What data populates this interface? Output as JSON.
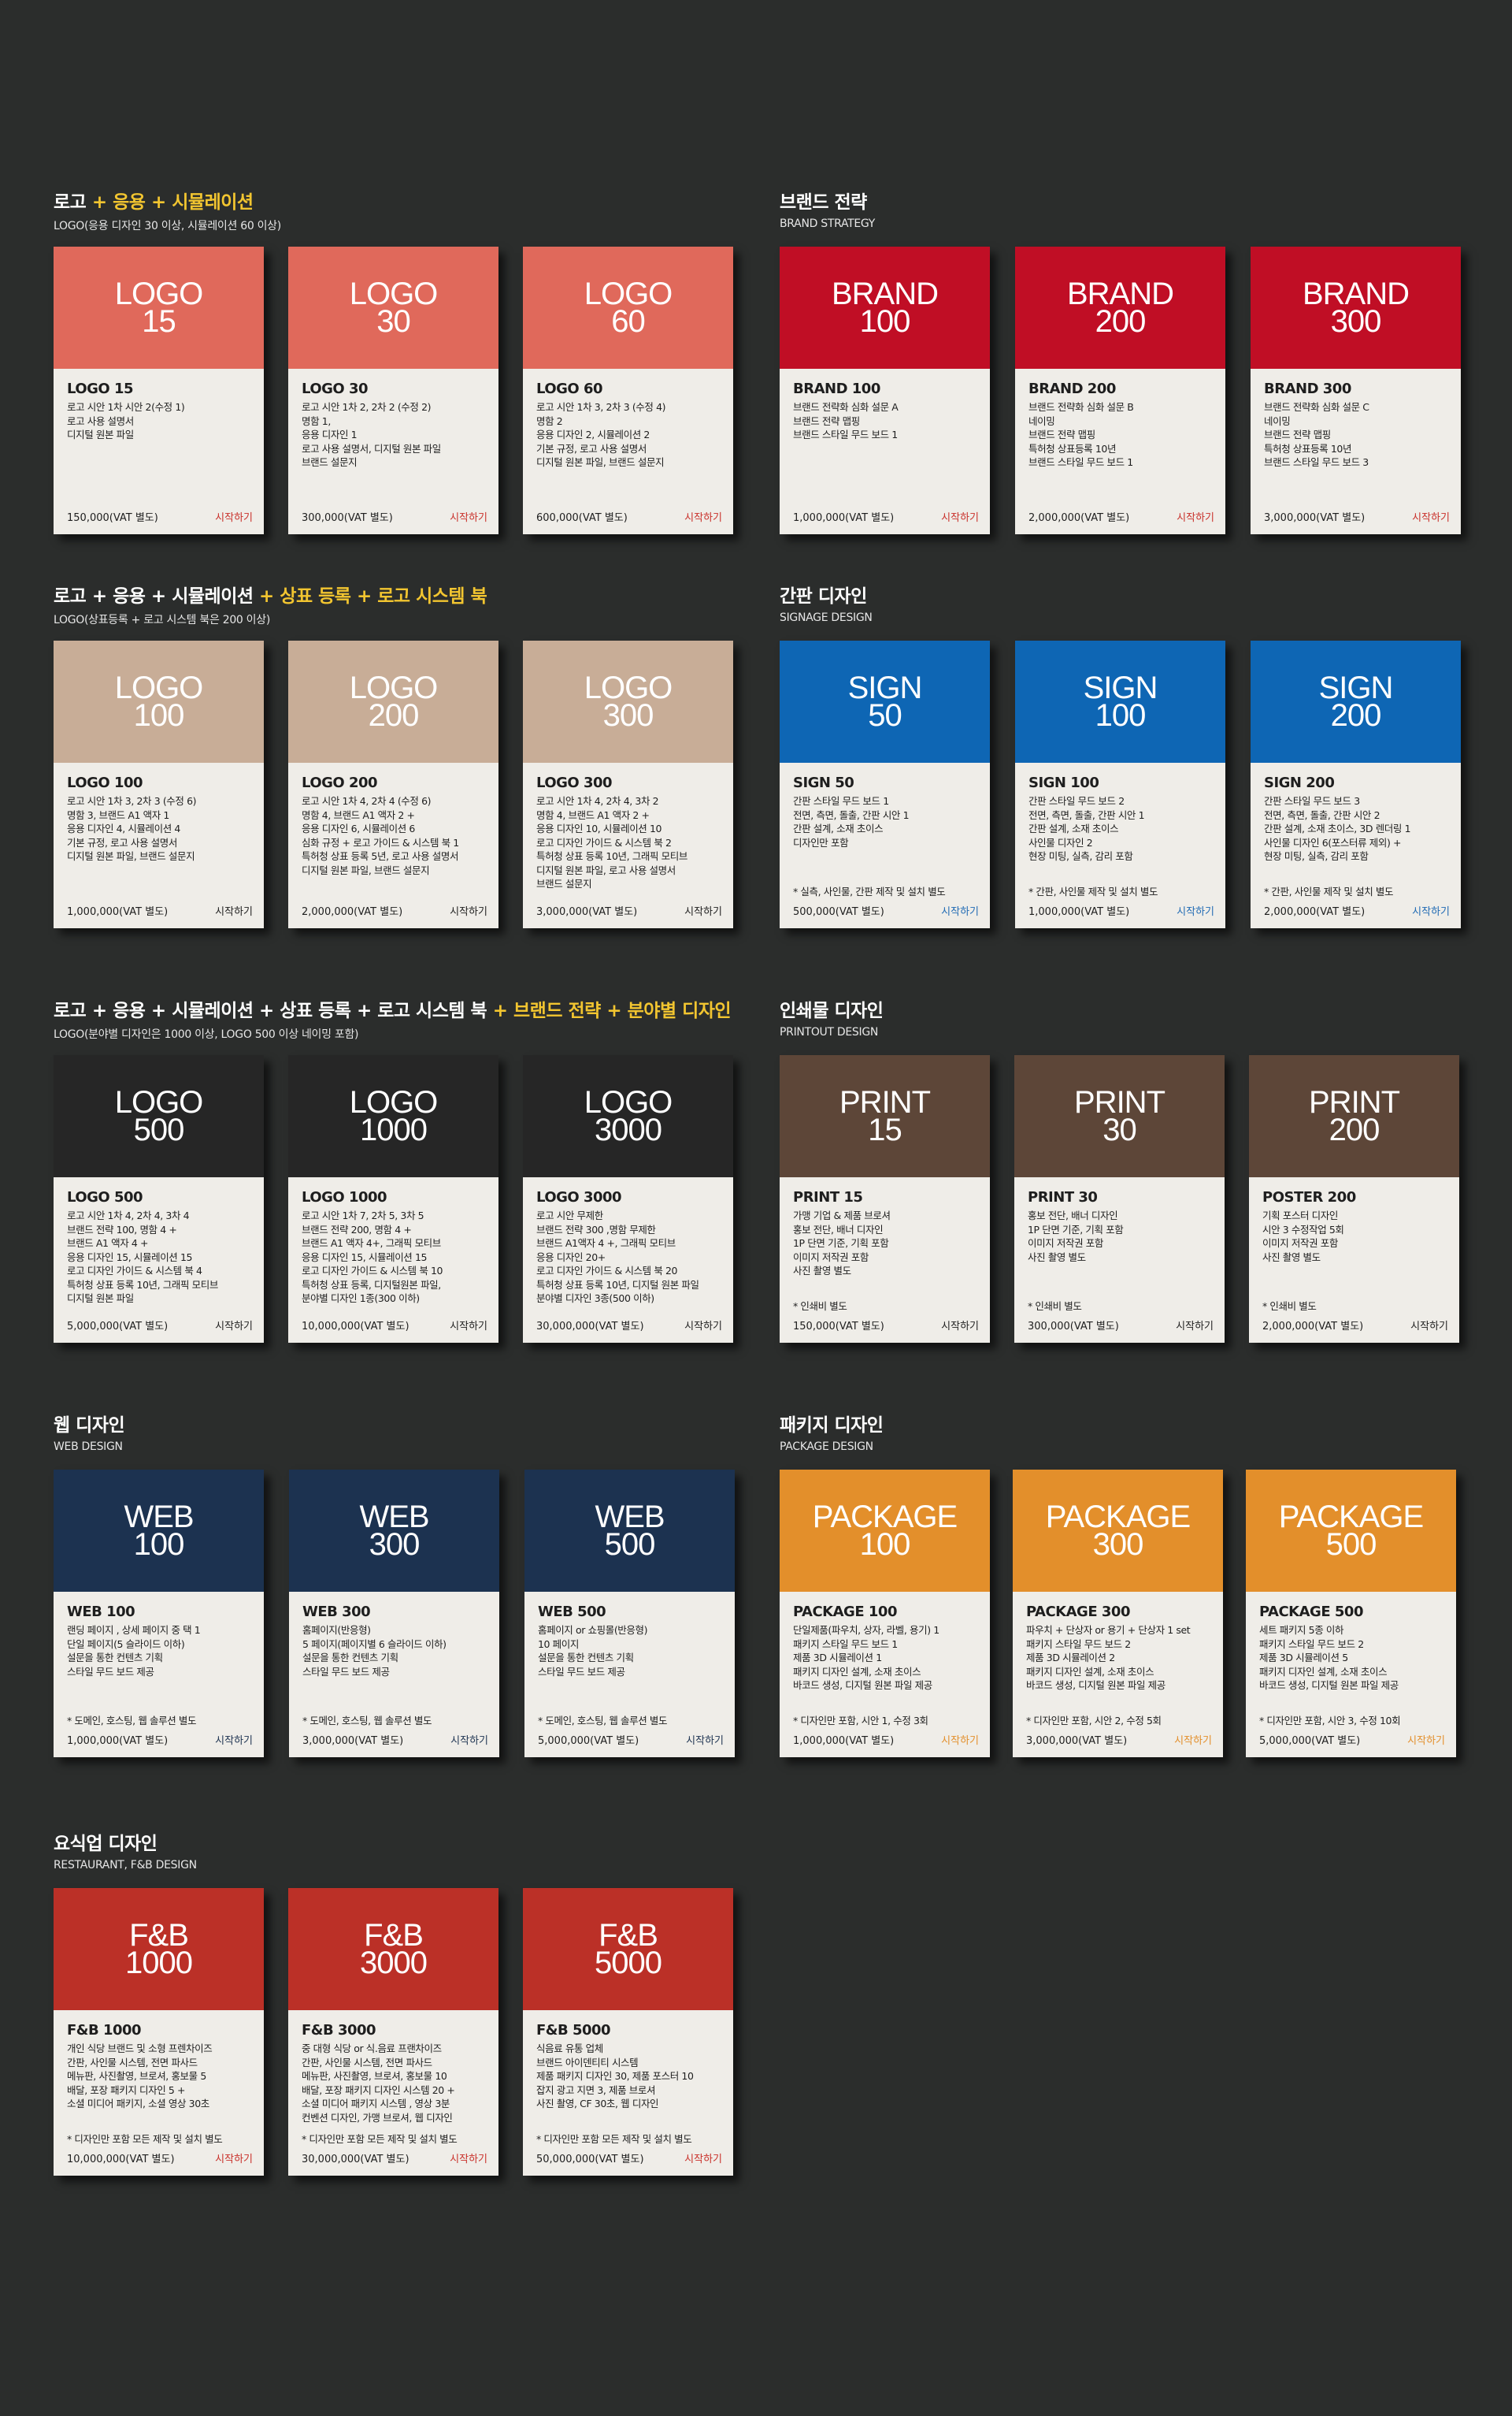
{
  "colors": {
    "logo_red": "#e0695b",
    "logo_tan": "#c8ad97",
    "logo_dark": "#262626",
    "brand_red": "#c00e25",
    "sign_blue": "#0e66b4",
    "print_brown": "#5d4638",
    "web_navy": "#1c3250",
    "package_orange": "#e38f2b",
    "fnb_red": "#bb3027",
    "start_red": "#c9302a",
    "start_blue": "#1f6ab4",
    "start_navy": "#1c3250",
    "start_orange": "#e38f2b",
    "start_dark": "#1e1e1e",
    "highlight_yellow": "#f2c530"
  },
  "sections": {
    "logo_basic": {
      "title_parts": [
        "로고",
        " + ",
        "응용",
        " + ",
        "시뮬레이션"
      ],
      "subtitle": "LOGO(응용 디자인 30 이상, 시뮬레이션 60 이상)",
      "cards": [
        {
          "head": [
            "LOGO",
            "15"
          ],
          "name": "LOGO 15",
          "lines": [
            "로고 시안 1차 시안 2(수정 1)",
            "로고 사용 설명서",
            "디지털 원본 파일"
          ],
          "note": "",
          "price": "150,000(VAT 별도)",
          "start": "시작하기"
        },
        {
          "head": [
            "LOGO",
            "30"
          ],
          "name": "LOGO 30",
          "lines": [
            "로고 시안 1차 2, 2차 2 (수정 2)",
            "명함 1,",
            "응용 디자인 1",
            "로고 사용 설명서, 디지털 원본 파일",
            "브랜드 설문지"
          ],
          "note": "",
          "price": "300,000(VAT 별도)",
          "start": "시작하기"
        },
        {
          "head": [
            "LOGO",
            "60"
          ],
          "name": "LOGO 60",
          "lines": [
            "로고 시안 1차 3, 2차 3 (수정 4)",
            "명함 2",
            "응용 디자인 2, 시뮬레이션 2",
            "기본 규정, 로고 사용 설명서",
            "디지털 원본 파일, 브랜드 설문지"
          ],
          "note": "",
          "price": "600,000(VAT 별도)",
          "start": "시작하기"
        }
      ]
    },
    "brand": {
      "title": "브랜드 전략",
      "subtitle": "BRAND STRATEGY",
      "cards": [
        {
          "head": [
            "BRAND",
            "100"
          ],
          "name": "BRAND 100",
          "lines": [
            "브랜드 전략화 심화 설문 A",
            "브랜드 전략 맵핑",
            "브랜드 스타일 무드 보드 1"
          ],
          "note": "",
          "price": "1,000,000(VAT 별도)",
          "start": "시작하기"
        },
        {
          "head": [
            "BRAND",
            "200"
          ],
          "name": "BRAND 200",
          "lines": [
            "브랜드 전략화 심화 설문 B",
            "네이밍",
            "브랜드 전략 맵핑",
            "특허청 상표등록 10년",
            "브랜드 스타일 무드 보드 1"
          ],
          "note": "",
          "price": "2,000,000(VAT 별도)",
          "start": "시작하기"
        },
        {
          "head": [
            "BRAND",
            "300"
          ],
          "name": "BRAND 300",
          "lines": [
            "브랜드 전략화 심화 설문 C",
            "네이밍",
            "브랜드 전략 맵핑",
            "특허청 상표등록 10년",
            "브랜드 스타일 무드 보드 3"
          ],
          "note": "",
          "price": "3,000,000(VAT 별도)",
          "start": "시작하기"
        }
      ]
    },
    "logo_trademark": {
      "title_parts": [
        "로고 + 응용 + 시뮬레이션",
        " + ",
        "상표 등록",
        " + ",
        "로고 시스템 북"
      ],
      "subtitle": "LOGO(상표등록 + 로고 시스템 북은 200 이상)",
      "cards": [
        {
          "head": [
            "LOGO",
            "100"
          ],
          "name": "LOGO 100",
          "lines": [
            "로고 시안 1차 3, 2차 3 (수정 6)",
            "명함 3, 브랜드 A1 액자 1",
            "응용 디자인 4, 시뮬레이션 4",
            "기본 규정, 로고 사용 설명서",
            "디지털 원본 파일, 브랜드 설문지"
          ],
          "note": "",
          "price": "1,000,000(VAT 별도)",
          "start": "시작하기"
        },
        {
          "head": [
            "LOGO",
            "200"
          ],
          "name": "LOGO 200",
          "lines": [
            "로고 시안 1차 4, 2차 4 (수정 6)",
            "명함 4, 브랜드 A1 액자 2 +",
            "응용 디자인 6, 시뮬레이션 6",
            "심화 규정 + 로고 가이드 & 시스템 북 1",
            "특허청 상표 등록 5년, 로고 사용 설명서",
            "디지털 원본 파일, 브랜드 설문지"
          ],
          "note": "",
          "price": "2,000,000(VAT 별도)",
          "start": "시작하기"
        },
        {
          "head": [
            "LOGO",
            "300"
          ],
          "name": "LOGO 300",
          "lines": [
            "로고 시안 1차 4, 2차 4, 3차 2",
            "명함 4, 브랜드 A1 액자 2 +",
            "응용 디자인 10, 시뮬레이션 10",
            "로고 디자인 가이드 & 시스템 북 2",
            "특허청 상표 등록 10년, 그래픽 모티브",
            "디지털 원본 파일, 로고 사용 설명서",
            "브랜드 설문지"
          ],
          "note": "",
          "price": "3,000,000(VAT 별도)",
          "start": "시작하기"
        }
      ]
    },
    "sign": {
      "title": "간판 디자인",
      "subtitle": "SIGNAGE DESIGN",
      "cards": [
        {
          "head": [
            "SIGN",
            "50"
          ],
          "name": "SIGN 50",
          "lines": [
            "간판 스타일 무드 보드 1",
            "전면, 측면, 돌출, 간판 시안 1",
            "간판 설계, 소재 초이스",
            "디자인만 포함"
          ],
          "note": "* 실측, 사인물, 간판 제작 및 설치 별도",
          "price": "500,000(VAT 별도)",
          "start": "시작하기"
        },
        {
          "head": [
            "SIGN",
            "100"
          ],
          "name": "SIGN 100",
          "lines": [
            "간판 스타일 무드 보드 2",
            "전면, 측면, 돌출, 간판 시안 1",
            "간판 설계, 소재 초이스",
            "사인물 디자인 2",
            "현장 미팅, 실측, 감리 포함"
          ],
          "note": "* 간판, 사인물 제작 및 설치 별도",
          "price": "1,000,000(VAT 별도)",
          "start": "시작하기"
        },
        {
          "head": [
            "SIGN",
            "200"
          ],
          "name": "SIGN 200",
          "lines": [
            "간판 스타일 무드 보드 3",
            "전면, 측면, 돌출, 간판 시안 2",
            "간판 설계, 소재 초이스, 3D 렌더링 1",
            "사인물 디자인 6(포스터류 제외) +",
            "현장 미팅, 실측, 감리 포함"
          ],
          "note": "* 간판, 사인물 제작 및 설치 별도",
          "price": "2,000,000(VAT 별도)",
          "start": "시작하기"
        }
      ]
    },
    "logo_full": {
      "title_parts": [
        "로고 + 응용 + 시뮬레이션 + 상표 등록 + 로고 시스템 북",
        " + ",
        "브랜드 전략",
        " + ",
        "분야별 디자인"
      ],
      "subtitle": "LOGO(분야별 디자인은 1000 이상, LOGO 500 이상 네이밍 포함)",
      "cards": [
        {
          "head": [
            "LOGO",
            "500"
          ],
          "name": "LOGO 500",
          "lines": [
            "로고 시안 1차 4, 2차 4, 3차 4",
            "브랜드 전략 100, 명함 4 +",
            "브랜드 A1 액자 4 +",
            "응용 디자인 15, 시뮬레이션 15",
            "로고 디자인 가이드 & 시스템 북 4",
            "특허청 상표 등록 10년, 그래픽 모티브",
            "디지털 원본 파일"
          ],
          "note": "",
          "price": "5,000,000(VAT 별도)",
          "start": "시작하기"
        },
        {
          "head": [
            "LOGO",
            "1000"
          ],
          "name": "LOGO 1000",
          "lines": [
            "로고 시안 1차 7, 2차 5, 3차 5",
            "브랜드 전략 200, 명함 4 +",
            "브랜드 A1 액자 4+, 그래픽 모티브",
            "응용 디자인 15, 시뮬레이션 15",
            "로고 디자인 가이드 & 시스템 북 10",
            "특허청 상표 등록, 디지털원본 파일,",
            "분야별 디자인 1종(300 이하)"
          ],
          "note": "",
          "price": "10,000,000(VAT 별도)",
          "start": "시작하기"
        },
        {
          "head": [
            "LOGO",
            "3000"
          ],
          "name": "LOGO 3000",
          "lines": [
            "로고 시안 무제한",
            "브랜드 전략 300 ,명함 무제한",
            "브랜드 A1액자 4 +, 그래픽 모티브",
            "응용 디자인 20+",
            "로고 디자인 가이드 & 시스템 북 20",
            "특허청 상표 등록 10년, 디지털 원본 파일",
            "분야별 디자인 3종(500 이하)"
          ],
          "note": "",
          "price": "30,000,000(VAT 별도)",
          "start": "시작하기"
        }
      ]
    },
    "print": {
      "title": "인쇄물 디자인",
      "subtitle": "PRINTOUT DESIGN",
      "cards": [
        {
          "head": [
            "PRINT",
            "15"
          ],
          "name": "PRINT 15",
          "lines": [
            "가맹 기업 & 제품 브로셔",
            "홍보 전단, 배너  디자인",
            "1P 단면 기준, 기획 포함",
            "이미지 저작권 포함",
            "사진 촬영 별도"
          ],
          "note": "* 인쇄비 별도",
          "price": "150,000(VAT 별도)",
          "start": "시작하기"
        },
        {
          "head": [
            "PRINT",
            "30"
          ],
          "name": "PRINT 30",
          "lines": [
            "홍보 전단, 배너  디자인",
            "1P 단면 기준, 기획 포함",
            "이미지 저작권 포함",
            "사진 촬영 별도"
          ],
          "note": "* 인쇄비 별도",
          "price": "300,000(VAT 별도)",
          "start": "시작하기"
        },
        {
          "head": [
            "PRINT",
            "200"
          ],
          "name": "POSTER 200",
          "lines": [
            "기획 포스터 디자인",
            "시안 3 수정작업 5회",
            "이미지 저작권 포함",
            "사진 촬영 별도"
          ],
          "note": "* 인쇄비 별도",
          "price": "2,000,000(VAT 별도)",
          "start": "시작하기"
        }
      ]
    },
    "web": {
      "title": "웹 디자인",
      "subtitle": "WEB DESIGN",
      "cards": [
        {
          "head": [
            "WEB",
            "100"
          ],
          "name": "WEB 100",
          "lines": [
            "랜딩 페이지 , 상세 페이지 중 택 1",
            "단일 페이지(5 슬라이드 이하)",
            "설문을 통한 컨텐츠 기획",
            "스타일 무드 보드 제공"
          ],
          "note": "* 도메인, 호스팅, 웹 솔루션 별도",
          "price": "1,000,000(VAT 별도)",
          "start": "시작하기"
        },
        {
          "head": [
            "WEB",
            "300"
          ],
          "name": "WEB 300",
          "lines": [
            "홈페이지(반응형)",
            "5 페이지(페이지별 6 슬라이드 이하)",
            "설문을 통한 컨텐츠 기획",
            "스타일 무드 보드 제공"
          ],
          "note": "* 도메인, 호스팅, 웹 솔루션 별도",
          "price": "3,000,000(VAT 별도)",
          "start": "시작하기"
        },
        {
          "head": [
            "WEB",
            "500"
          ],
          "name": "WEB 500",
          "lines": [
            "홈페이지 or 쇼핑몰(반응형)",
            "10 페이지",
            "설문을 통한 컨텐츠 기획",
            "스타일 무드 보드 제공"
          ],
          "note": "* 도메인, 호스팅, 웹 솔루션 별도",
          "price": "5,000,000(VAT 별도)",
          "start": "시작하기"
        }
      ]
    },
    "package": {
      "title": "패키지 디자인",
      "subtitle": "PACKAGE DESIGN",
      "cards": [
        {
          "head": [
            "PACKAGE",
            "100"
          ],
          "name": "PACKAGE 100",
          "lines": [
            "단일제품(파우치, 상자, 라벨, 용기) 1",
            "패키지 스타일 무드 보드 1",
            "제품 3D 시뮬레이션 1",
            "패키지 디자인 설계, 소재 초이스",
            "바코드 생성, 디지털 원본 파일 제공"
          ],
          "note": "* 디자인만 포함, 시안 1, 수정 3회",
          "price": "1,000,000(VAT 별도)",
          "start": "시작하기"
        },
        {
          "head": [
            "PACKAGE",
            "300"
          ],
          "name": "PACKAGE 300",
          "lines": [
            "파우치 + 단상자 or 용기 + 단상자 1 set",
            "패키지 스타일 무드 보드 2",
            "제품 3D 시뮬레이션 2",
            "패키지 디자인 설계, 소재 초이스",
            "바코드 생성, 디지털 원본 파일 제공"
          ],
          "note": "* 디자인만 포함, 시안 2, 수정 5회",
          "price": "3,000,000(VAT 별도)",
          "start": "시작하기"
        },
        {
          "head": [
            "PACKAGE",
            "500"
          ],
          "name": "PACKAGE 500",
          "lines": [
            "세트 패키지 5종 이하",
            "패키지 스타일 무드 보드 2",
            "제품 3D 시뮬레이션 5",
            "패키지 디자인 설계, 소재 초이스",
            "바코드 생성, 디지털 원본 파일 제공"
          ],
          "note": "* 디자인만 포함, 시안 3, 수정 10회",
          "price": "5,000,000(VAT 별도)",
          "start": "시작하기"
        }
      ]
    },
    "fnb": {
      "title": "요식업 디자인",
      "subtitle": "RESTAURANT, F&B DESIGN",
      "cards": [
        {
          "head": [
            "F&B",
            "1000"
          ],
          "name": "F&B 1000",
          "lines": [
            "개인 식당 브랜드 및 소형 프렌차이즈",
            "간판, 사인물 시스템, 전면 파사드",
            "메뉴판, 사진촬영, 브로셔, 홍보물 5",
            "배달, 포장 패키지 디자인 5 +",
            "소셜 미디어 패키지, 소셜 영상 30초"
          ],
          "note": "* 디자인만 포함 모든 제작 및 설치 별도",
          "price": "10,000,000(VAT 별도)",
          "start": "시작하기"
        },
        {
          "head": [
            "F&B",
            "3000"
          ],
          "name": "F&B 3000",
          "lines": [
            "중 대형 식당 or 식.음료 프랜차이즈",
            "간판, 사인물 시스템, 전면 파사드",
            "메뉴판, 사진촬영, 브로셔, 홍보물 10",
            "배달, 포장 패키지 디자인 시스템 20 +",
            "소셜 미디어 패키지 시스템 , 영상 3분",
            "컨벤션 디자인, 가맹 브로셔, 웹 디자인"
          ],
          "note": "* 디자인만 포함 모든 제작 및 설치 별도",
          "price": "30,000,000(VAT 별도)",
          "start": "시작하기"
        },
        {
          "head": [
            "F&B",
            "5000"
          ],
          "name": "F&B 5000",
          "lines": [
            "식음료 유통 업체",
            "브랜드 아이덴티티 시스템",
            "제품 패키지 디자인 30, 제품 포스터 10",
            "잡지 광고 지면 3, 제품 브로셔",
            "사진 촬영, CF 30초, 웹 디자인"
          ],
          "note": "* 디자인만 포함 모든 제작 및 설치 별도",
          "price": "50,000,000(VAT 별도)",
          "start": "시작하기"
        }
      ]
    }
  }
}
